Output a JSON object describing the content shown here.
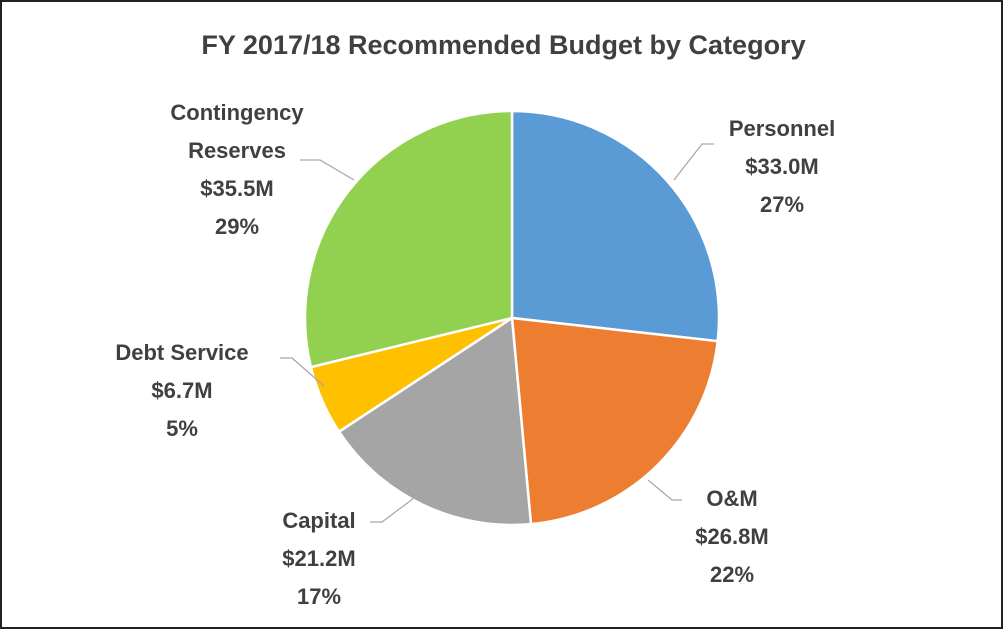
{
  "chart_data": {
    "type": "pie",
    "title": "FY 2017/18 Recommended Budget by Category",
    "categories": [
      "Personnel",
      "O&M",
      "Capital",
      "Debt Service",
      "Contingency Reserves"
    ],
    "values": [
      33.0,
      26.8,
      21.2,
      6.7,
      35.5
    ],
    "value_labels": [
      "$33.0M",
      "$26.8M",
      "$21.2M",
      "$6.7M",
      "$35.5M"
    ],
    "percent_labels": [
      "27%",
      "22%",
      "17%",
      "5%",
      "29%"
    ],
    "colors": [
      "#5b9bd5",
      "#ed7d31",
      "#a5a5a5",
      "#ffc000",
      "#92d050"
    ]
  }
}
